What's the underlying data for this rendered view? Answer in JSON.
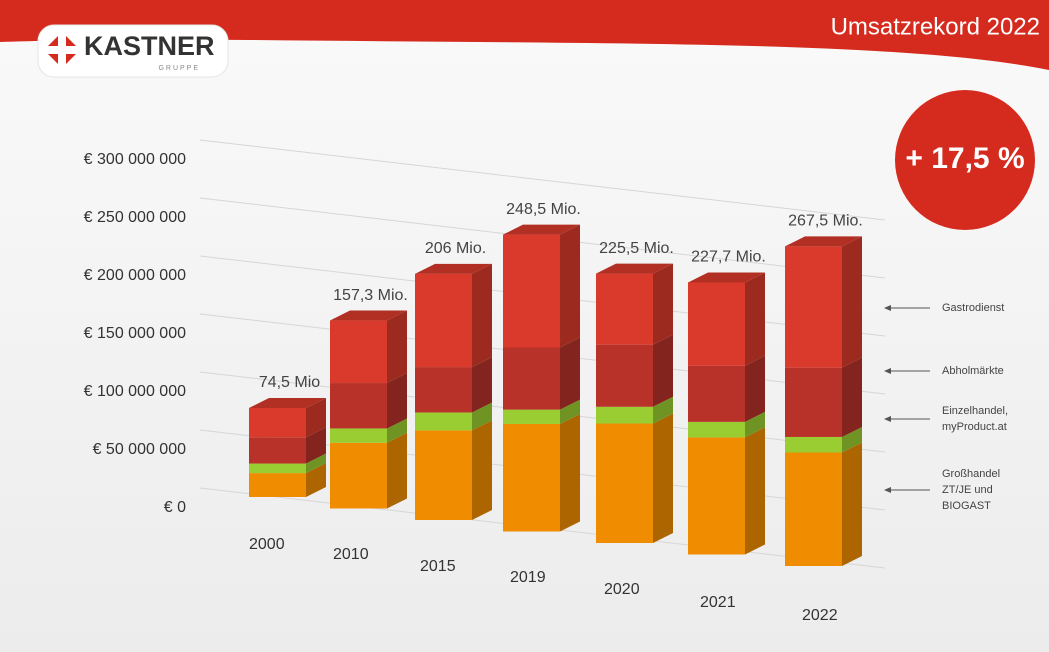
{
  "header": {
    "logo": "KASTNER",
    "logo_sub": "GRUPPE",
    "title": "Umsatzrekord 2022"
  },
  "chart_data": {
    "type": "bar3d-stacked",
    "annotation": "+ 17,5 %",
    "categories": [
      "2000",
      "2010",
      "2015",
      "2019",
      "2020",
      "2021",
      "2022"
    ],
    "series": [
      {
        "name": "Großhandel ZT/JE und BIOGAST",
        "color": "#f08c00",
        "values": [
          20000000,
          55000000,
          75000000,
          90000000,
          100000000,
          98000000,
          95000000
        ]
      },
      {
        "name": "Einzelhandel, myProduct.at",
        "color": "#9acd32",
        "values": [
          8000000,
          12000000,
          15000000,
          12000000,
          14000000,
          13000000,
          13000000
        ]
      },
      {
        "name": "Abholmärkte",
        "color": "#b8322a",
        "values": [
          22000000,
          38000000,
          38000000,
          52000000,
          52000000,
          47000000,
          58000000
        ]
      },
      {
        "name": "Gastrodienst",
        "color": "#d93a2b",
        "values": [
          24500000,
          52300000,
          78000000,
          94500000,
          59500000,
          69700000,
          101500000
        ]
      }
    ],
    "totals": [
      74500000,
      157300000,
      206000000,
      248500000,
      225500000,
      227700000,
      267500000
    ],
    "value_labels": [
      "74,5 Mio",
      "157,3 Mio.",
      "206 Mio.",
      "248,5 Mio.",
      "225,5 Mio.",
      "227,7 Mio.",
      "267,5 Mio."
    ],
    "ylim": [
      0,
      300000000
    ],
    "yticks": [
      {
        "value": 0,
        "label": "€ 0"
      },
      {
        "value": 50000000,
        "label": "€ 50 000 000"
      },
      {
        "value": 100000000,
        "label": "€ 100 000 000"
      },
      {
        "value": 150000000,
        "label": "€ 150 000 000"
      },
      {
        "value": 200000000,
        "label": "€ 200 000 000"
      },
      {
        "value": 250000000,
        "label": "€ 250 000 000"
      },
      {
        "value": 300000000,
        "label": "€ 300 000 000"
      }
    ],
    "grid": true
  }
}
